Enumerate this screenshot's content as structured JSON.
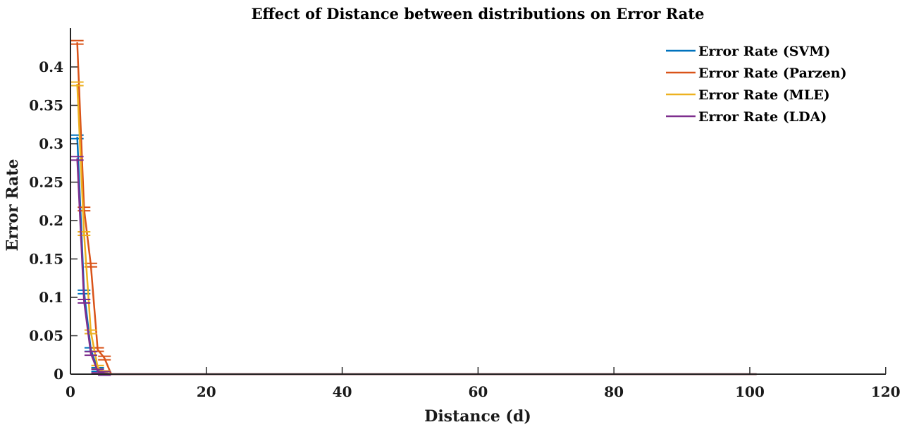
{
  "chart_data": {
    "type": "line",
    "title": "Effect of Distance between distributions on Error Rate",
    "xlabel": "Distance (d)",
    "ylabel": "Error Rate",
    "xlim": [
      0,
      120
    ],
    "ylim": [
      0,
      0.45
    ],
    "xticks": [
      "0",
      "20",
      "40",
      "60",
      "80",
      "100",
      "120"
    ],
    "yticks": [
      "0",
      "0.05",
      "0.1",
      "0.15",
      "0.2",
      "0.25",
      "0.3",
      "0.35",
      "0.4"
    ],
    "grid": false,
    "legend_position": "top-right",
    "error_bars": true,
    "series": [
      {
        "name": "Error Rate (SVM)",
        "color": "#0072BD",
        "x": [
          1,
          2,
          3,
          4,
          5,
          6,
          7,
          8,
          9,
          10,
          101
        ],
        "y": [
          0.309,
          0.107,
          0.032,
          0.006,
          0.001,
          0,
          0,
          0,
          0,
          0,
          0
        ]
      },
      {
        "name": "Error Rate (Parzen)",
        "color": "#D95319",
        "x": [
          1,
          2,
          3,
          4,
          5,
          6,
          7,
          8,
          9,
          10,
          101
        ],
        "y": [
          0.432,
          0.215,
          0.142,
          0.032,
          0.021,
          0,
          0,
          0,
          0,
          0,
          0
        ]
      },
      {
        "name": "Error Rate (MLE)",
        "color": "#EDB120",
        "x": [
          1,
          2,
          3,
          4,
          5,
          6,
          7,
          8,
          9,
          10,
          101
        ],
        "y": [
          0.378,
          0.183,
          0.055,
          0.009,
          0.002,
          0,
          0,
          0,
          0,
          0,
          0
        ]
      },
      {
        "name": "Error Rate (LDA)",
        "color": "#7E2F8E",
        "x": [
          1,
          2,
          3,
          4,
          5,
          6,
          7,
          8,
          9,
          10,
          101
        ],
        "y": [
          0.281,
          0.095,
          0.027,
          0.004,
          0.001,
          0,
          0,
          0,
          0,
          0,
          0
        ]
      }
    ]
  }
}
